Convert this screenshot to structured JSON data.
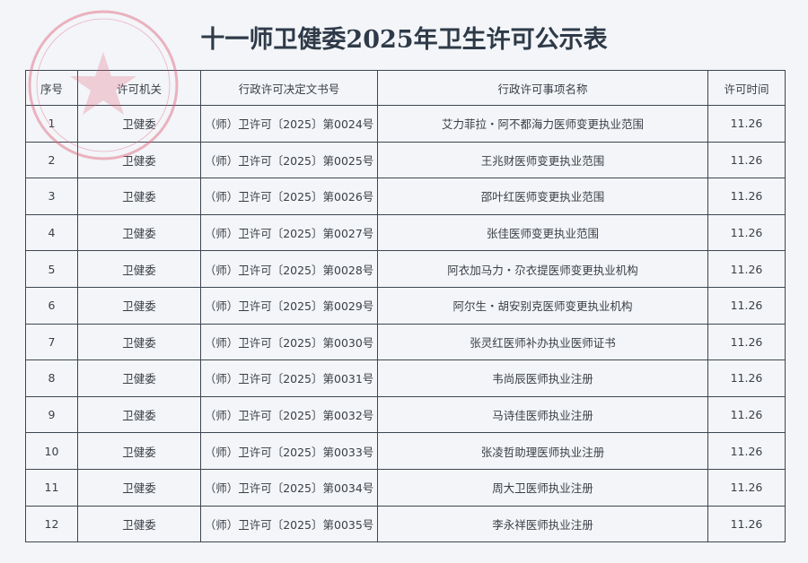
{
  "title": "十一师卫健委2025年卫生许可公示表",
  "colors": {
    "seal": "#e0607a",
    "text": "#3a3f46",
    "border": "#3c4652"
  },
  "table": {
    "headers": [
      "序号",
      "许可机关",
      "行政许可决定文书号",
      "行政许可事项名称",
      "许可时间"
    ],
    "rows": [
      [
        "1",
        "卫健委",
        "（师）卫许可〔2025〕第0024号",
        "艾力菲拉・阿不都海力医师变更执业范围",
        "11.26"
      ],
      [
        "2",
        "卫健委",
        "（师）卫许可〔2025〕第0025号",
        "王兆财医师变更执业范围",
        "11.26"
      ],
      [
        "3",
        "卫健委",
        "（师）卫许可〔2025〕第0026号",
        "邵叶红医师变更执业范围",
        "11.26"
      ],
      [
        "4",
        "卫健委",
        "（师）卫许可〔2025〕第0027号",
        "张佳医师变更执业范围",
        "11.26"
      ],
      [
        "5",
        "卫健委",
        "（师）卫许可〔2025〕第0028号",
        "阿衣加马力・尕衣提医师变更执业机构",
        "11.26"
      ],
      [
        "6",
        "卫健委",
        "（师）卫许可〔2025〕第0029号",
        "阿尔生・胡安别克医师变更执业机构",
        "11.26"
      ],
      [
        "7",
        "卫健委",
        "（师）卫许可〔2025〕第0030号",
        "张灵红医师补办执业医师证书",
        "11.26"
      ],
      [
        "8",
        "卫健委",
        "（师）卫许可〔2025〕第0031号",
        "韦尚辰医师执业注册",
        "11.26"
      ],
      [
        "9",
        "卫健委",
        "（师）卫许可〔2025〕第0032号",
        "马诗佳医师执业注册",
        "11.26"
      ],
      [
        "10",
        "卫健委",
        "（师）卫许可〔2025〕第0033号",
        "张凌哲助理医师执业注册",
        "11.26"
      ],
      [
        "11",
        "卫健委",
        "（师）卫许可〔2025〕第0034号",
        "周大卫医师执业注册",
        "11.26"
      ],
      [
        "12",
        "卫健委",
        "（师）卫许可〔2025〕第0035号",
        "李永祥医师执业注册",
        "11.26"
      ]
    ]
  }
}
